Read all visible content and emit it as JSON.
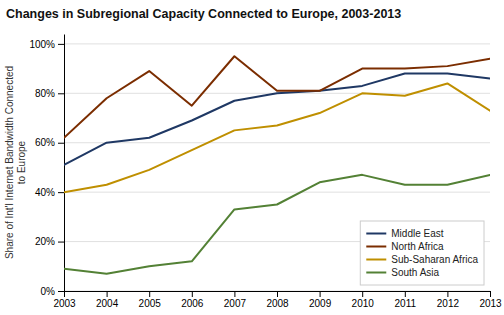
{
  "chart_data": {
    "type": "line",
    "title": "Changes in Subregional Capacity Connected to Europe, 2003-2013",
    "y_label": "Share of Int'l Internet Bandwidth Connected\nto Europe",
    "x": [
      2003,
      2004,
      2005,
      2006,
      2007,
      2008,
      2009,
      2010,
      2011,
      2012,
      2013
    ],
    "series": [
      {
        "name": "Middle East",
        "color": "#1f3864",
        "values": [
          0.51,
          0.6,
          0.62,
          0.69,
          0.77,
          0.8,
          0.81,
          0.83,
          0.88,
          0.88,
          0.86
        ]
      },
      {
        "name": "North Africa",
        "color": "#7b2d00",
        "values": [
          0.62,
          0.78,
          0.89,
          0.75,
          0.95,
          0.81,
          0.81,
          0.9,
          0.9,
          0.91,
          0.94
        ]
      },
      {
        "name": "Sub-Saharan Africa",
        "color": "#bf8f00",
        "values": [
          0.4,
          0.43,
          0.49,
          0.57,
          0.65,
          0.67,
          0.72,
          0.8,
          0.79,
          0.84,
          0.73
        ]
      },
      {
        "name": "South Asia",
        "color": "#538135",
        "values": [
          0.09,
          0.07,
          0.1,
          0.12,
          0.33,
          0.35,
          0.44,
          0.47,
          0.43,
          0.43,
          0.47
        ]
      }
    ],
    "xlim": [
      2003,
      2013
    ],
    "xticks": [
      2003,
      2004,
      2005,
      2006,
      2007,
      2008,
      2009,
      2010,
      2011,
      2012,
      2013
    ],
    "ylim": [
      0,
      1.04
    ],
    "yticks": [
      {
        "value": 0,
        "label": "0%"
      },
      {
        "value": 0.2,
        "label": "20%"
      },
      {
        "value": 0.4,
        "label": "40%"
      },
      {
        "value": 0.6,
        "label": "60%"
      },
      {
        "value": 0.8,
        "label": "80%"
      },
      {
        "value": 1.0,
        "label": "100%"
      }
    ],
    "grid": true,
    "legend": "lower right"
  }
}
